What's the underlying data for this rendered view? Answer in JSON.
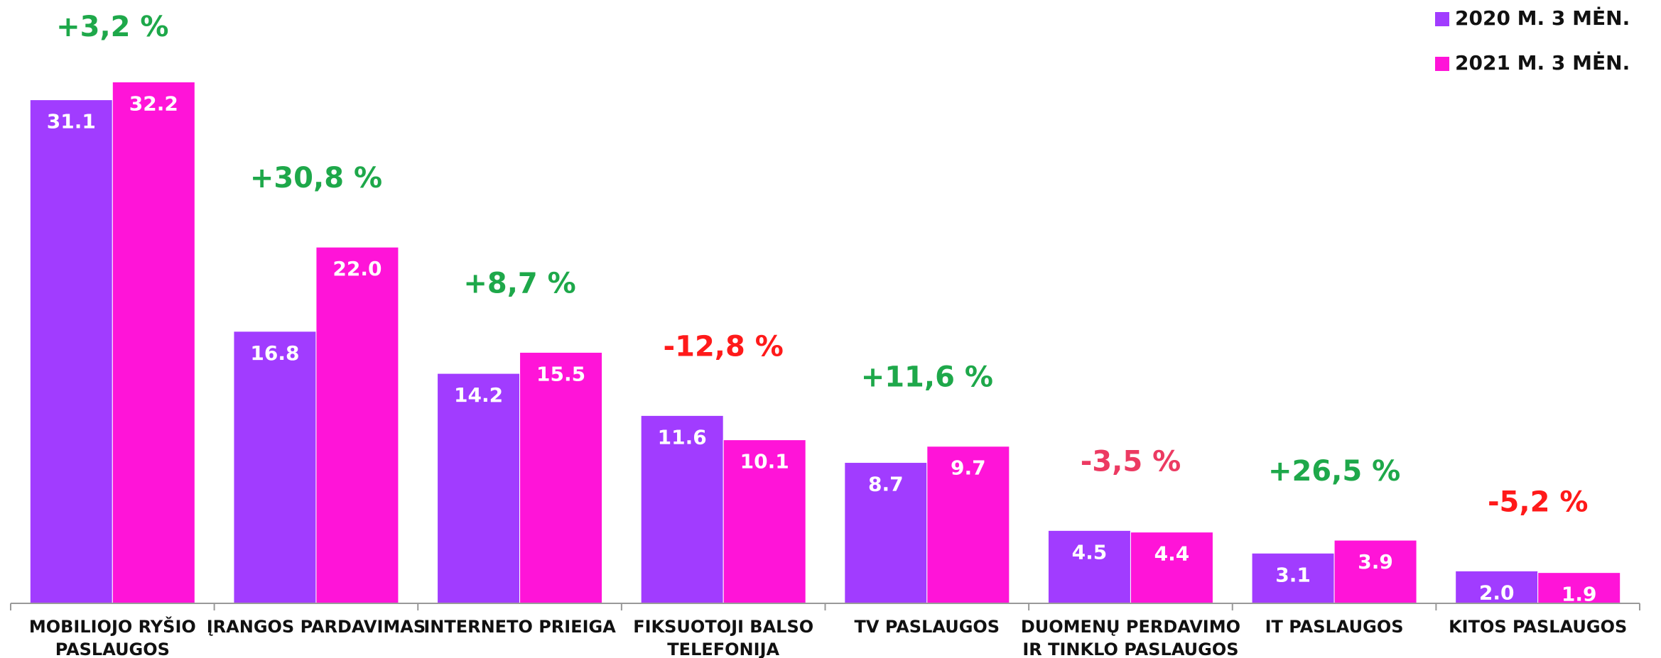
{
  "chart_data": {
    "type": "bar",
    "categories": [
      "MOBILIOJO RYŠIO\nPASLAUGOS",
      "ĮRANGOS PARDAVIMAS",
      "INTERNETO PRIEIGA",
      "FIKSUOTOJI BALSO\nTELEFONIJA",
      "TV PASLAUGOS",
      "DUOMENŲ PERDAVIMO\nIR TINKLO PASLAUGOS",
      "IT PASLAUGOS",
      "KITOS PASLAUGOS"
    ],
    "series": [
      {
        "name": "2020 M. 3 MĖN.",
        "color": "#a13cff",
        "values": [
          31.1,
          16.8,
          14.2,
          11.6,
          8.7,
          4.5,
          3.1,
          2.0
        ],
        "value_labels": [
          "31.1",
          "16.8",
          "14.2",
          "11.6",
          "8.7",
          "4.5",
          "3.1",
          "2.0"
        ]
      },
      {
        "name": "2021 M. 3 MĖN.",
        "color": "#ff14d8",
        "values": [
          32.2,
          22.0,
          15.5,
          10.1,
          9.7,
          4.4,
          3.9,
          1.9
        ],
        "value_labels": [
          "32.2",
          "22.0",
          "15.5",
          "10.1",
          "9.7",
          "4.4",
          "3.9",
          "1.9"
        ]
      }
    ],
    "annotations": [
      {
        "text": "+3,2 %",
        "color": "#1ea84a"
      },
      {
        "text": "+30,8 %",
        "color": "#1ea84a"
      },
      {
        "text": "+8,7 %",
        "color": "#1ea84a"
      },
      {
        "text": "-12,8 %",
        "color": "#ff1a1a"
      },
      {
        "text": "+11,6 %",
        "color": "#1ea84a"
      },
      {
        "text": "-3,5 %",
        "color": "#ec3a62"
      },
      {
        "text": "+26,5 %",
        "color": "#1ea84a"
      },
      {
        "text": "-5,2 %",
        "color": "#ff1a1a"
      }
    ],
    "ylim": [
      0,
      37
    ],
    "legend": "top-right"
  }
}
